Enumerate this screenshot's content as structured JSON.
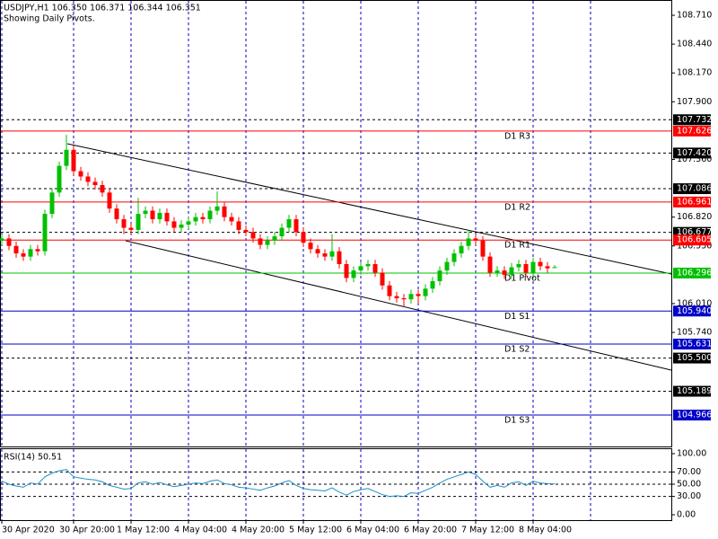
{
  "chart_data": [
    {
      "type": "candlestick",
      "title": "USDJPY,H1  106.350 106.371 106.344 106.351",
      "subtitle": "Showing Daily Pivots.",
      "open": [
        106.6,
        106.62,
        106.55,
        106.48,
        106.45,
        106.52,
        106.5,
        106.85,
        107.05,
        107.3,
        107.45,
        107.25,
        107.2,
        107.15,
        107.12,
        107.05,
        106.9,
        106.8,
        106.72,
        106.7,
        106.85,
        106.88,
        106.8,
        106.86,
        106.78,
        106.72,
        106.75,
        106.78,
        106.82,
        106.8,
        106.88,
        106.92,
        106.82,
        106.78,
        106.7,
        106.68,
        106.62,
        106.56,
        106.6,
        106.64,
        106.72,
        106.8,
        106.68,
        106.58,
        106.52,
        106.48,
        106.45,
        106.5,
        106.38,
        106.25,
        106.32,
        106.36,
        106.38,
        106.3,
        106.18,
        106.08,
        106.06,
        106.05,
        106.1,
        106.08,
        106.15,
        106.22,
        106.32,
        106.4,
        106.48,
        106.55,
        106.62,
        106.6,
        106.45,
        106.3,
        106.32,
        106.28,
        106.35,
        106.38,
        106.3,
        106.4,
        106.36,
        106.35
      ],
      "high": [
        106.66,
        106.66,
        106.59,
        106.52,
        106.56,
        106.56,
        106.89,
        107.09,
        107.34,
        107.59,
        107.49,
        107.29,
        107.24,
        107.19,
        107.16,
        107.09,
        106.94,
        106.84,
        106.76,
        107.0,
        106.92,
        106.92,
        106.9,
        106.9,
        106.82,
        106.79,
        106.82,
        106.86,
        106.86,
        106.92,
        107.06,
        106.96,
        106.86,
        106.82,
        106.74,
        106.72,
        106.66,
        106.64,
        106.68,
        106.76,
        106.84,
        106.84,
        106.72,
        106.62,
        106.56,
        106.52,
        106.66,
        106.54,
        106.42,
        106.36,
        106.4,
        106.42,
        106.42,
        106.34,
        106.22,
        106.12,
        106.1,
        106.14,
        106.14,
        106.19,
        106.26,
        106.36,
        106.44,
        106.52,
        106.59,
        106.7,
        106.66,
        106.64,
        106.49,
        106.36,
        106.36,
        106.39,
        106.42,
        106.42,
        106.44,
        106.44,
        106.4,
        106.371
      ],
      "low": [
        106.56,
        106.51,
        106.44,
        106.41,
        106.41,
        106.46,
        106.46,
        106.81,
        107.01,
        107.26,
        107.21,
        107.16,
        107.11,
        107.08,
        107.01,
        106.86,
        106.76,
        106.66,
        106.66,
        106.66,
        106.81,
        106.76,
        106.76,
        106.74,
        106.68,
        106.68,
        106.71,
        106.74,
        106.76,
        106.76,
        106.84,
        106.78,
        106.74,
        106.66,
        106.64,
        106.58,
        106.52,
        106.52,
        106.56,
        106.6,
        106.68,
        106.64,
        106.54,
        106.48,
        106.44,
        106.41,
        106.41,
        106.34,
        106.21,
        106.21,
        106.28,
        106.32,
        106.26,
        106.14,
        106.04,
        106.02,
        105.98,
        106.01,
        106.01,
        106.04,
        106.11,
        106.18,
        106.28,
        106.36,
        106.44,
        106.51,
        106.56,
        106.41,
        106.26,
        106.26,
        106.24,
        106.24,
        106.31,
        106.26,
        106.26,
        106.32,
        106.3,
        106.344
      ],
      "close": [
        106.62,
        106.55,
        106.48,
        106.45,
        106.52,
        106.5,
        106.85,
        107.05,
        107.3,
        107.45,
        107.25,
        107.2,
        107.15,
        107.12,
        107.05,
        106.9,
        106.8,
        106.72,
        106.7,
        106.85,
        106.88,
        106.8,
        106.86,
        106.78,
        106.72,
        106.75,
        106.78,
        106.82,
        106.8,
        106.88,
        106.92,
        106.82,
        106.78,
        106.7,
        106.68,
        106.62,
        106.56,
        106.6,
        106.64,
        106.72,
        106.8,
        106.68,
        106.58,
        106.52,
        106.48,
        106.45,
        106.5,
        106.38,
        106.25,
        106.32,
        106.36,
        106.38,
        106.3,
        106.18,
        106.08,
        106.06,
        106.05,
        106.1,
        106.08,
        106.15,
        106.22,
        106.32,
        106.4,
        106.48,
        106.55,
        106.62,
        106.6,
        106.45,
        106.3,
        106.32,
        106.28,
        106.35,
        106.38,
        106.3,
        106.4,
        106.36,
        106.34,
        106.351
      ],
      "bull_color": "#00c000",
      "bear_color": "#ff0000",
      "xlim": [
        -0.25,
        93.25
      ],
      "xticks": [
        {
          "value": 0,
          "label": "30 Apr 2020"
        },
        {
          "value": 10,
          "label": "30 Apr 20:00"
        },
        {
          "value": 18,
          "label": "1 May 12:00"
        },
        {
          "value": 26,
          "label": "4 May 04:00"
        },
        {
          "value": 34,
          "label": "4 May 20:00"
        },
        {
          "value": 42,
          "label": "5 May 12:00"
        },
        {
          "value": 50,
          "label": "6 May 04:00"
        },
        {
          "value": 58,
          "label": "6 May 20:00"
        },
        {
          "value": 66,
          "label": "7 May 12:00"
        },
        {
          "value": 74,
          "label": "8 May 04:00"
        }
      ],
      "ylim": [
        104.672,
        108.853
      ],
      "yticks": [
        {
          "value": 108.71,
          "label": "108.710"
        },
        {
          "value": 108.44,
          "label": "108.440"
        },
        {
          "value": 108.17,
          "label": "108.170"
        },
        {
          "value": 107.9,
          "label": "107.900"
        },
        {
          "value": 107.36,
          "label": "107.360"
        },
        {
          "value": 106.82,
          "label": "106.820"
        },
        {
          "value": 106.55,
          "label": "106.550"
        },
        {
          "value": 106.01,
          "label": "106.010"
        },
        {
          "value": 105.74,
          "label": "105.740"
        }
      ],
      "levels": [
        {
          "value": 107.732,
          "label": "107.732"
        },
        {
          "value": 107.42,
          "label": "107.420"
        },
        {
          "value": 107.086,
          "label": "107.086"
        },
        {
          "value": 106.677,
          "label": "106.677"
        },
        {
          "value": 105.5,
          "label": "105.500"
        },
        {
          "value": 105.189,
          "label": "105.189"
        }
      ],
      "pivots": [
        {
          "name": "D1 R3",
          "value": 107.626,
          "label": "107.626",
          "color": "#ff0000"
        },
        {
          "name": "D1 R2",
          "value": 106.961,
          "label": "106.961",
          "color": "#ff0000"
        },
        {
          "name": "D1 R1",
          "value": 106.605,
          "label": "106.605",
          "color": "#ff0000"
        },
        {
          "name": "D1 Pivot",
          "value": 106.296,
          "label": "106.296",
          "color": "#00c000"
        },
        {
          "name": "D1 S1",
          "value": 105.94,
          "label": "105.940",
          "color": "#0000c8"
        },
        {
          "name": "D1 S2",
          "value": 105.631,
          "label": "105.631",
          "color": "#0000c8"
        },
        {
          "name": "D1 S3",
          "value": 104.966,
          "label": "104.966",
          "color": "#0000c8"
        }
      ]
    },
    {
      "type": "line",
      "title": "RSI(14) 50.51",
      "values": [
        55,
        50,
        47,
        45,
        52,
        50,
        62,
        68,
        72,
        74,
        62,
        60,
        58,
        57,
        54,
        48,
        45,
        42,
        43,
        52,
        54,
        50,
        53,
        49,
        46,
        48,
        50,
        52,
        51,
        55,
        57,
        51,
        49,
        45,
        44,
        42,
        40,
        44,
        47,
        52,
        56,
        48,
        43,
        41,
        40,
        39,
        44,
        37,
        32,
        38,
        41,
        43,
        38,
        33,
        30,
        31,
        30,
        36,
        35,
        40,
        45,
        52,
        58,
        62,
        66,
        70,
        66,
        55,
        45,
        48,
        45,
        52,
        54,
        48,
        55,
        52,
        51,
        50.51
      ],
      "color": "#1e90c8",
      "ylim": [
        -8.8,
        108.8
      ],
      "yticks": [
        {
          "value": 100,
          "label": "100.00"
        },
        {
          "value": 70,
          "label": "70.00"
        },
        {
          "value": 50,
          "label": "50.00"
        },
        {
          "value": 30,
          "label": "30.00"
        },
        {
          "value": 0,
          "label": "0.00"
        }
      ]
    }
  ]
}
